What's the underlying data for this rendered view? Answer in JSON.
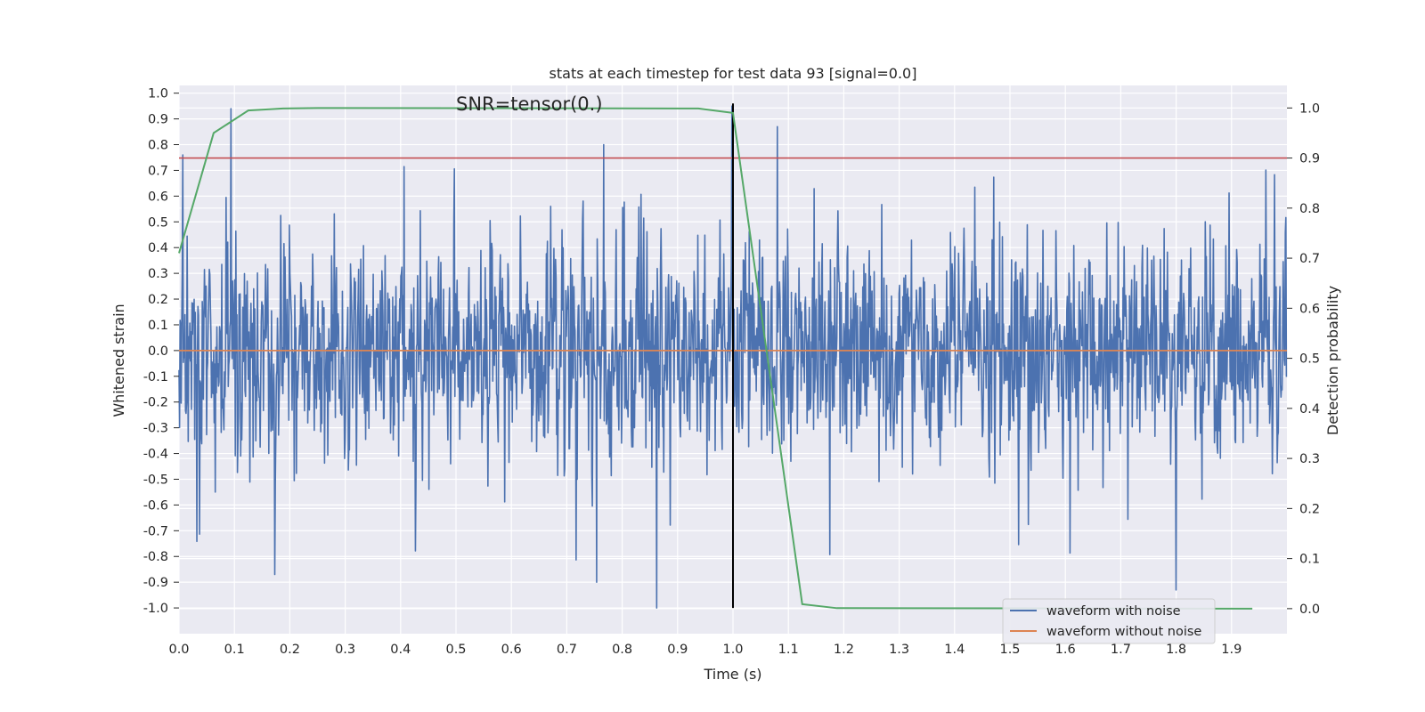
{
  "chart_data": {
    "type": "line",
    "title": "stats at each timestep for test data 93 [signal=0.0]",
    "xlabel": "Time (s)",
    "ylabel": "Whitened strain",
    "y2label": "Detection probability",
    "annotation": "SNR=tensor(0.)",
    "xlim": [
      0.0,
      2.0
    ],
    "ylim": [
      -1.1,
      1.03
    ],
    "y2lim": [
      -0.05,
      1.045
    ],
    "grid": true,
    "legend_position": "lower-right",
    "x_ticks": [
      "0.0",
      "0.1",
      "0.2",
      "0.3",
      "0.4",
      "0.5",
      "0.6",
      "0.7",
      "0.8",
      "0.9",
      "1.0",
      "1.1",
      "1.2",
      "1.3",
      "1.4",
      "1.5",
      "1.6",
      "1.7",
      "1.8",
      "1.9"
    ],
    "y_ticks": [
      "1.0",
      "0.9",
      "0.8",
      "0.7",
      "0.6",
      "0.5",
      "0.4",
      "0.3",
      "0.2",
      "0.1",
      "0.0",
      "-0.1",
      "-0.2",
      "-0.3",
      "-0.4",
      "-0.5",
      "-0.6",
      "-0.7",
      "-0.8",
      "-0.9",
      "-1.0"
    ],
    "y2_ticks": [
      "1.0",
      "0.9",
      "0.8",
      "0.7",
      "0.6",
      "0.5",
      "0.4",
      "0.3",
      "0.2",
      "0.1",
      "0.0"
    ],
    "series": [
      {
        "name": "waveform with noise",
        "color": "#4c72b0",
        "axis": "left",
        "note": "dense noise trace, amplitude roughly ±0.5 with spikes up to ±0.95",
        "noise_seed": 93,
        "noise_samples": 2048,
        "notable_peaks": [
          [
            0.094,
            0.94
          ],
          [
            0.0065,
            0.76
          ],
          [
            1.08,
            0.87
          ],
          [
            0.767,
            0.8
          ],
          [
            0.862,
            -1.0
          ],
          [
            0.173,
            -0.87
          ],
          [
            1.8,
            -0.93
          ],
          [
            0.754,
            -0.9
          ]
        ]
      },
      {
        "name": "waveform without noise",
        "color": "#dd8452",
        "axis": "left",
        "x": [
          0.0,
          2.0
        ],
        "y": [
          0.0,
          0.0
        ]
      },
      {
        "name": "detection probability",
        "color": "#55a868",
        "axis": "right",
        "x": [
          0.0,
          0.0625,
          0.125,
          0.1875,
          0.25,
          0.9375,
          1.0,
          1.0625,
          1.125,
          1.1875,
          1.9375
        ],
        "y": [
          0.71,
          0.95,
          0.995,
          0.999,
          1.0,
          0.999,
          0.99,
          0.5,
          0.009,
          0.001,
          0.0
        ]
      }
    ],
    "threshold_line": {
      "axis": "right",
      "y": 0.9,
      "color": "#c44e52"
    },
    "marker_line": {
      "x": 1.0,
      "y_from": -1.0,
      "y_to": 0.96,
      "color": "#000000"
    },
    "legend": [
      {
        "label": "waveform with noise",
        "color": "#4c72b0"
      },
      {
        "label": "waveform without noise",
        "color": "#dd8452"
      }
    ],
    "colors": {
      "background": "#eaeaf2",
      "grid": "#ffffff",
      "text": "#262626"
    }
  }
}
